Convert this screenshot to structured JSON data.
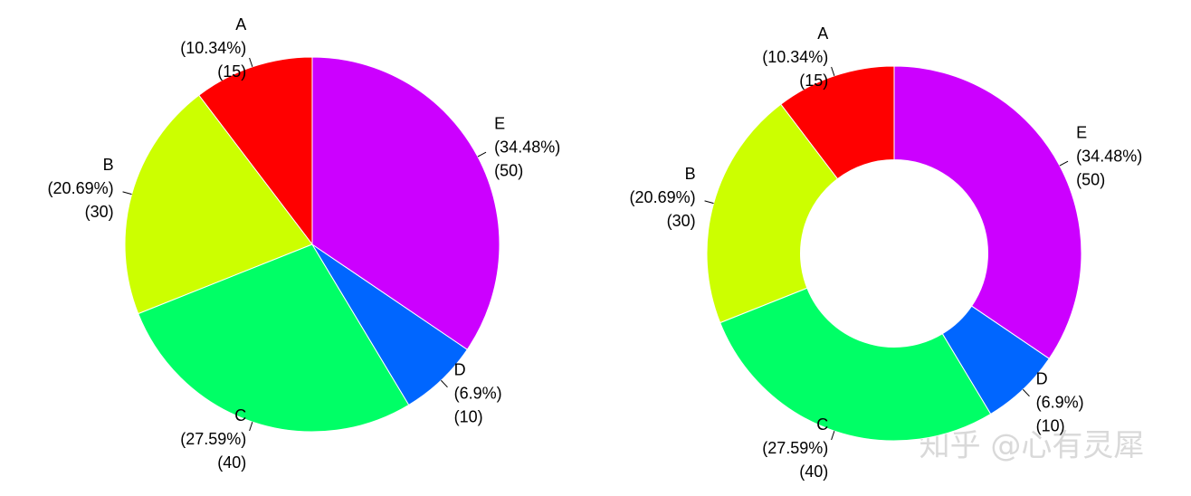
{
  "chart_data": [
    {
      "type": "pie",
      "categories": [
        "A",
        "B",
        "C",
        "D",
        "E"
      ],
      "values": [
        15,
        30,
        40,
        10,
        50
      ],
      "percent_labels": [
        "(10.34%)",
        "(20.69%)",
        "(27.59%)",
        "(6.9%)",
        "(34.48%)"
      ],
      "value_labels": [
        "(15)",
        "(30)",
        "(40)",
        "(10)",
        "(50)"
      ],
      "colors": [
        "#ff0000",
        "#ccff00",
        "#00ff66",
        "#0066ff",
        "#cc00ff"
      ]
    },
    {
      "type": "donut",
      "categories": [
        "A",
        "B",
        "C",
        "D",
        "E"
      ],
      "values": [
        15,
        30,
        40,
        10,
        50
      ],
      "percent_labels": [
        "(10.34%)",
        "(20.69%)",
        "(27.59%)",
        "(6.9%)",
        "(34.48%)"
      ],
      "value_labels": [
        "(15)",
        "(30)",
        "(40)",
        "(10)",
        "(50)"
      ],
      "colors": [
        "#ff0000",
        "#ccff00",
        "#00ff66",
        "#0066ff",
        "#cc00ff"
      ]
    }
  ],
  "watermark": "知乎 @心有灵犀"
}
